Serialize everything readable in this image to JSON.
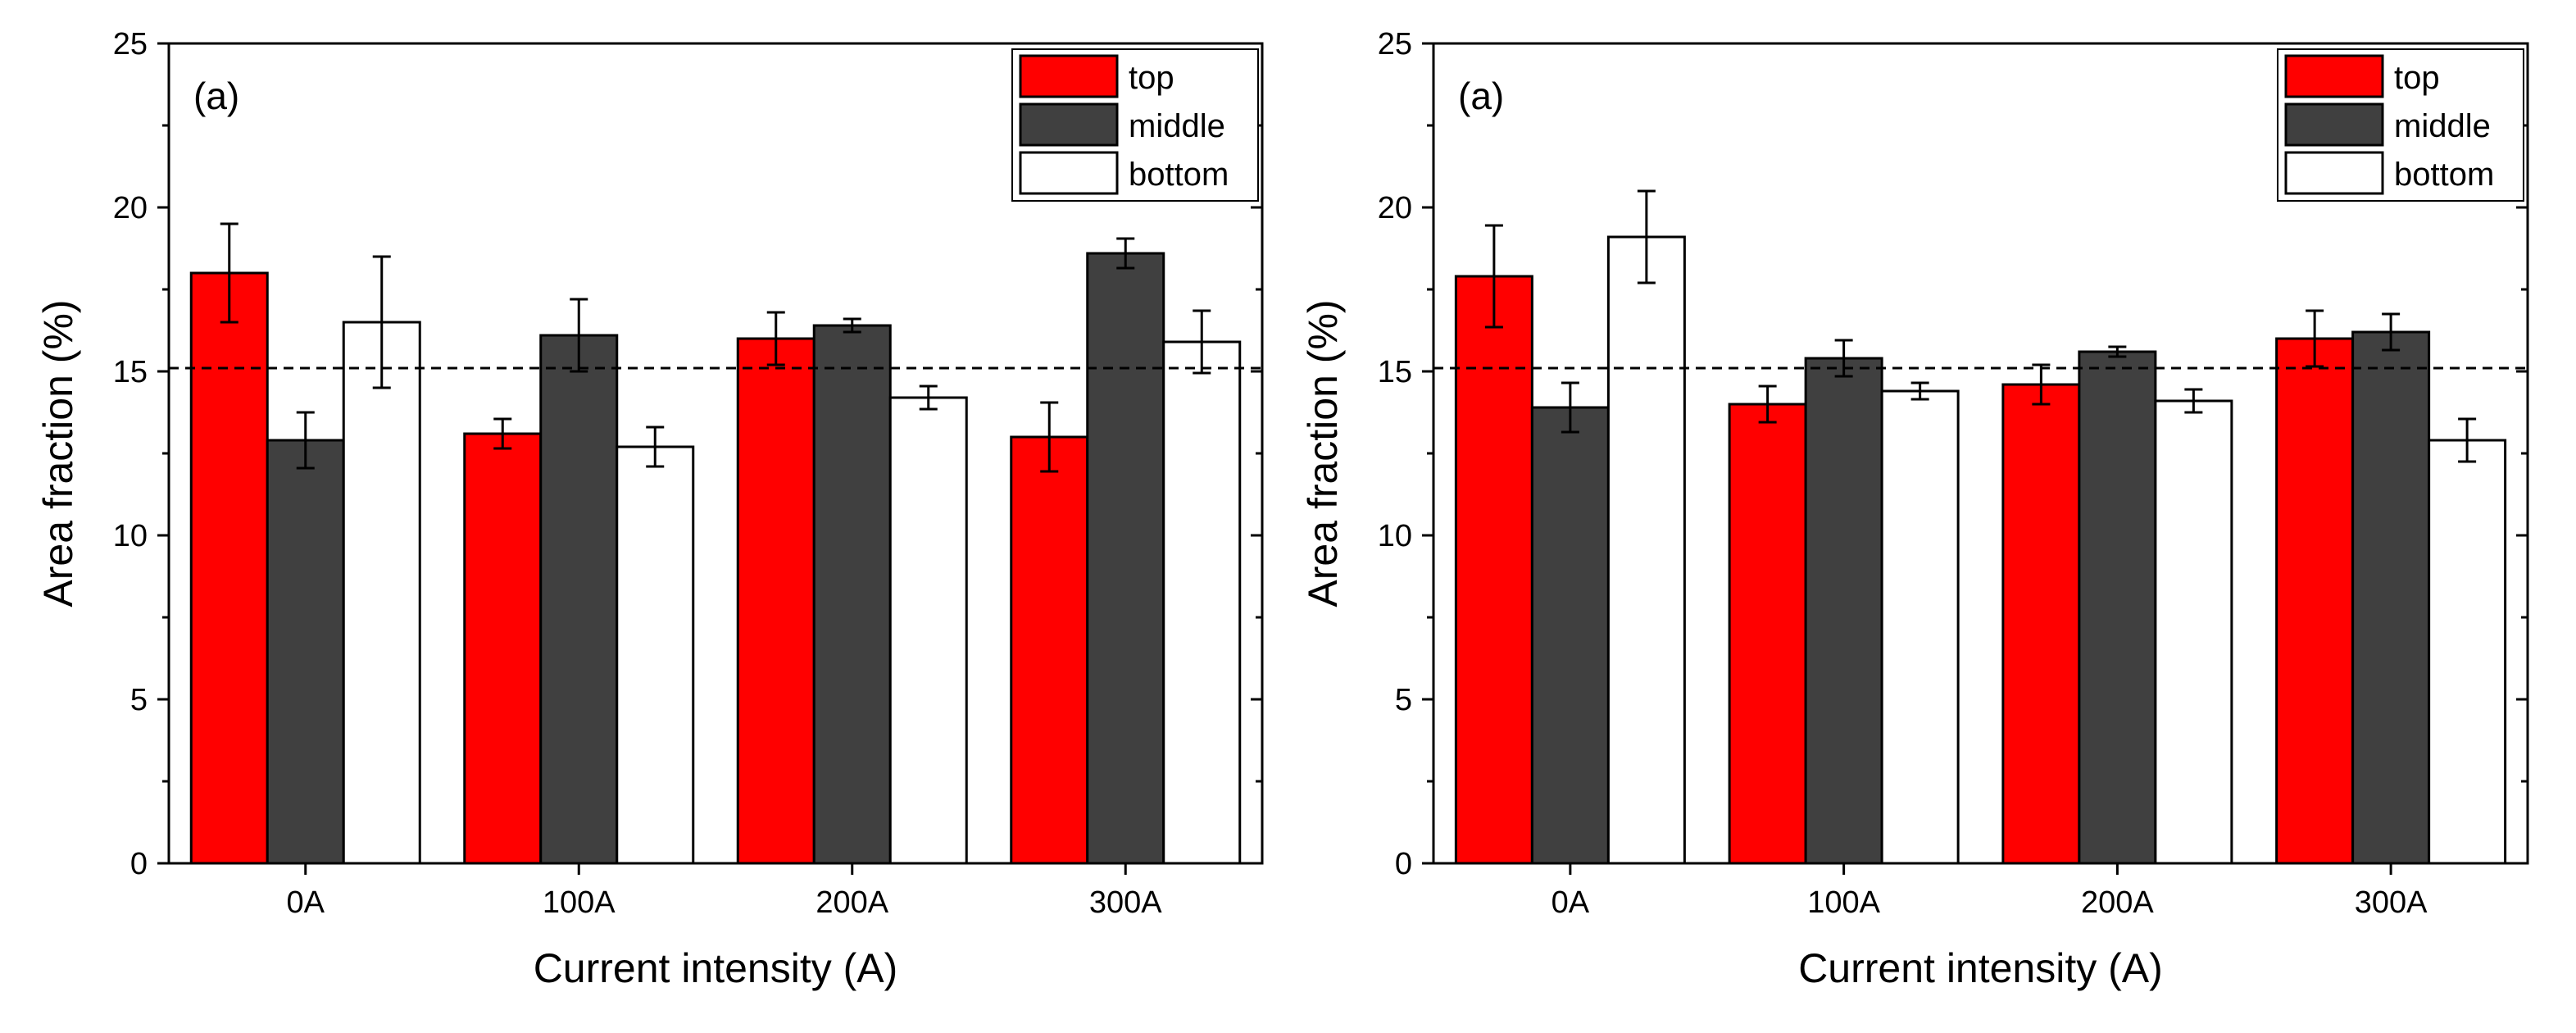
{
  "chart_data": [
    {
      "type": "bar",
      "panel_label": "(a)",
      "xlabel": "Current intensity (A)",
      "ylabel": "Area fraction (%)",
      "ylim": [
        0,
        25
      ],
      "yticks": [
        0,
        5,
        10,
        15,
        20,
        25
      ],
      "reference_line": 15.1,
      "categories": [
        "0A",
        "100A",
        "200A",
        "300A"
      ],
      "series": [
        {
          "name": "top",
          "color": "#ff0000",
          "values": [
            18.0,
            13.1,
            16.0,
            13.0
          ],
          "errors": [
            1.5,
            0.45,
            0.8,
            1.05
          ]
        },
        {
          "name": "middle",
          "color": "#404040",
          "values": [
            12.9,
            16.1,
            16.4,
            18.6
          ],
          "errors": [
            0.85,
            1.1,
            0.2,
            0.45
          ]
        },
        {
          "name": "bottom",
          "color": "#ffffff",
          "values": [
            16.5,
            12.7,
            14.2,
            15.9
          ],
          "errors": [
            2.0,
            0.6,
            0.35,
            0.95
          ]
        }
      ],
      "legend_position": "top-right"
    },
    {
      "type": "bar",
      "panel_label": "(a)",
      "xlabel": "Current intensity (A)",
      "ylabel": "Area fraction (%)",
      "ylim": [
        0,
        25
      ],
      "yticks": [
        0,
        5,
        10,
        15,
        20,
        25
      ],
      "reference_line": 15.1,
      "categories": [
        "0A",
        "100A",
        "200A",
        "300A"
      ],
      "series": [
        {
          "name": "top",
          "color": "#ff0000",
          "values": [
            17.9,
            14.0,
            14.6,
            16.0
          ],
          "errors": [
            1.55,
            0.55,
            0.6,
            0.85
          ]
        },
        {
          "name": "middle",
          "color": "#404040",
          "values": [
            13.9,
            15.4,
            15.6,
            16.2
          ],
          "errors": [
            0.75,
            0.55,
            0.15,
            0.55
          ]
        },
        {
          "name": "bottom",
          "color": "#ffffff",
          "values": [
            19.1,
            14.4,
            14.1,
            12.9
          ],
          "errors": [
            1.4,
            0.25,
            0.35,
            0.65
          ]
        }
      ],
      "legend_position": "top-right"
    }
  ]
}
